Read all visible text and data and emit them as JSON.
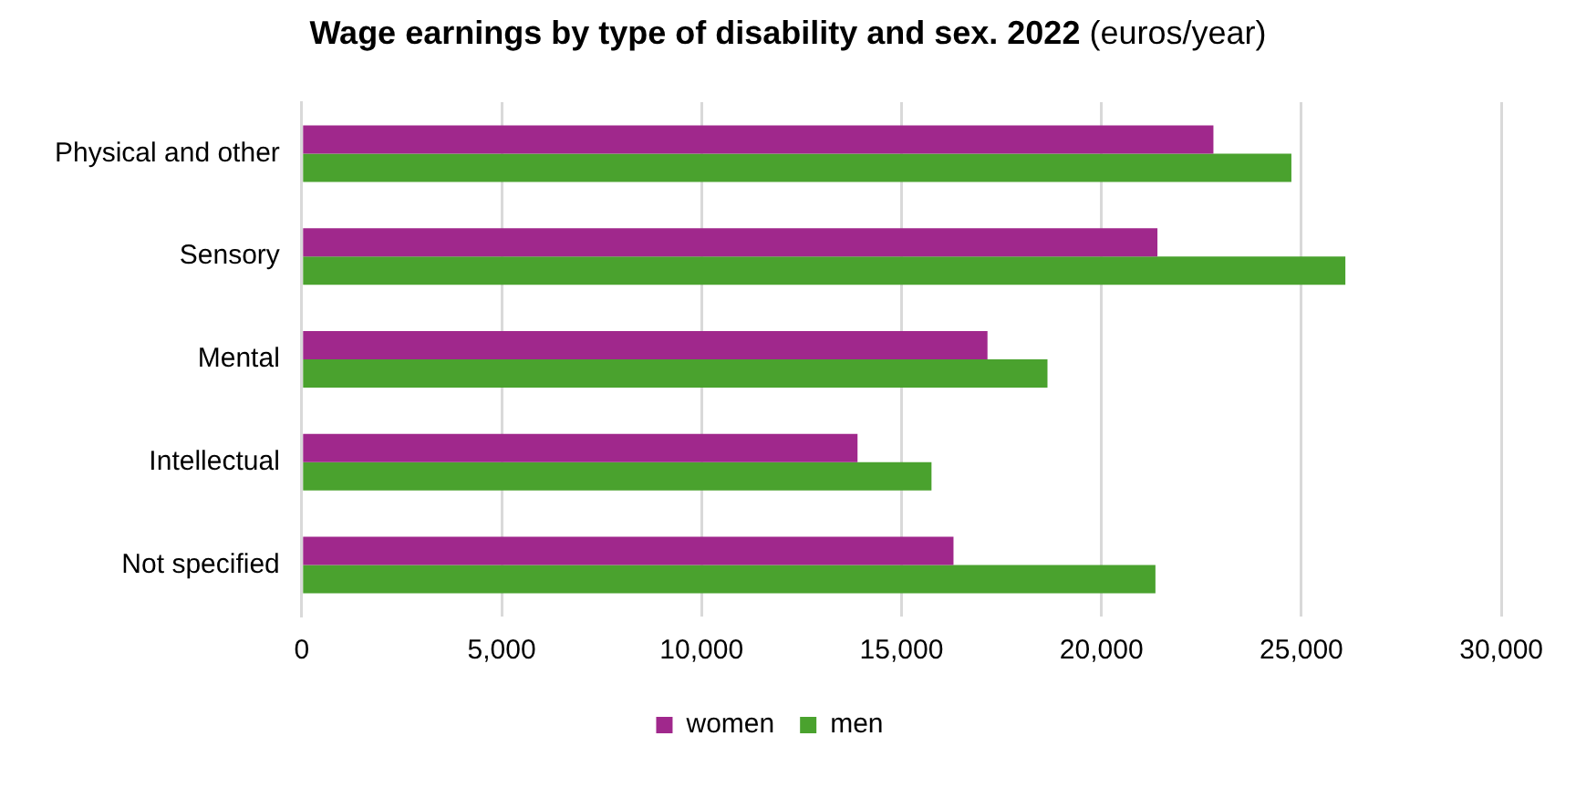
{
  "chart_data": {
    "type": "bar",
    "orientation": "horizontal",
    "title": "Wage earnings by type of disability and sex. 2022",
    "subtitle": "(euros/year)",
    "categories": [
      "Physical and other",
      "Sensory",
      "Mental",
      "Intellectual",
      "Not specified"
    ],
    "series": [
      {
        "name": "women",
        "color": "#a0288c",
        "values": [
          22800,
          21400,
          17150,
          13900,
          16300
        ]
      },
      {
        "name": "men",
        "color": "#4aa22e",
        "values": [
          24750,
          26100,
          18650,
          15750,
          21350
        ]
      }
    ],
    "xlim": [
      0,
      30000
    ],
    "xticks": [
      {
        "value": 0,
        "label": "0"
      },
      {
        "value": 5000,
        "label": "5,000"
      },
      {
        "value": 10000,
        "label": "10,000"
      },
      {
        "value": 15000,
        "label": "15,000"
      },
      {
        "value": 20000,
        "label": "20,000"
      },
      {
        "value": 25000,
        "label": "25,000"
      },
      {
        "value": 30000,
        "label": "30,000"
      }
    ],
    "grid": "x",
    "legend": "bottom"
  }
}
